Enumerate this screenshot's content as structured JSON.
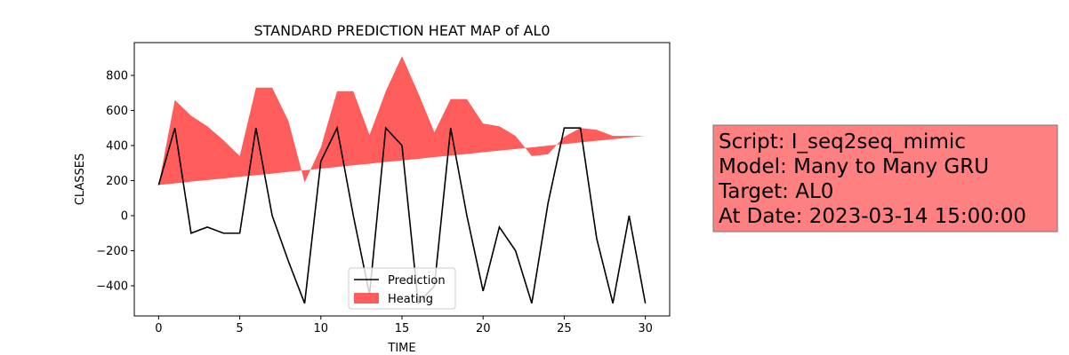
{
  "chart_data": {
    "type": "line",
    "title": "STANDARD PREDICTION HEAT MAP of AL0",
    "xlabel": "TIME",
    "ylabel": "CLASSES",
    "x": [
      0,
      1,
      2,
      3,
      4,
      5,
      6,
      7,
      8,
      9,
      10,
      11,
      12,
      13,
      14,
      15,
      16,
      17,
      18,
      19,
      20,
      21,
      22,
      23,
      24,
      25,
      26,
      27,
      28,
      29,
      30
    ],
    "series": [
      {
        "name": "Prediction",
        "color": "#000000",
        "values": [
          175,
          500,
          -100,
          -65,
          -100,
          -100,
          500,
          0,
          -260,
          -500,
          310,
          500,
          0,
          -450,
          500,
          400,
          -500,
          -400,
          500,
          0,
          -430,
          -65,
          -200,
          -500,
          70,
          500,
          500,
          -130,
          -500,
          0,
          -500
        ]
      },
      {
        "name": "Heating",
        "color": "#ff3333",
        "fill": true,
        "values": [
          175,
          660,
          570,
          510,
          430,
          340,
          730,
          730,
          540,
          190,
          390,
          710,
          710,
          460,
          710,
          910,
          700,
          475,
          665,
          665,
          525,
          510,
          455,
          340,
          350,
          450,
          500,
          490,
          455,
          455,
          455
        ],
        "lower": [
          175,
          184,
          194,
          203,
          212,
          222,
          231,
          240,
          250,
          259,
          268,
          278,
          287,
          296,
          306,
          315,
          324,
          334,
          343,
          352,
          362,
          371,
          380,
          390,
          399,
          408,
          418,
          427,
          436,
          446,
          455
        ]
      }
    ],
    "xlim": [
      -1.5,
      31.5
    ],
    "xticks": [
      0,
      5,
      10,
      15,
      20,
      25,
      30
    ],
    "ylim": [
      -572,
      987
    ],
    "yticks": [
      {
        "value": -400,
        "label": "−400"
      },
      {
        "value": -200,
        "label": "−200"
      },
      0,
      200,
      400,
      600,
      800
    ],
    "legend": "lower center",
    "annotation": [
      "Script: I_seq2seq_mimic",
      "Model: Many to Many GRU",
      "Target: AL0",
      "At Date: 2023-03-14 15:00:00"
    ],
    "annotation_color": "#ff8080"
  }
}
